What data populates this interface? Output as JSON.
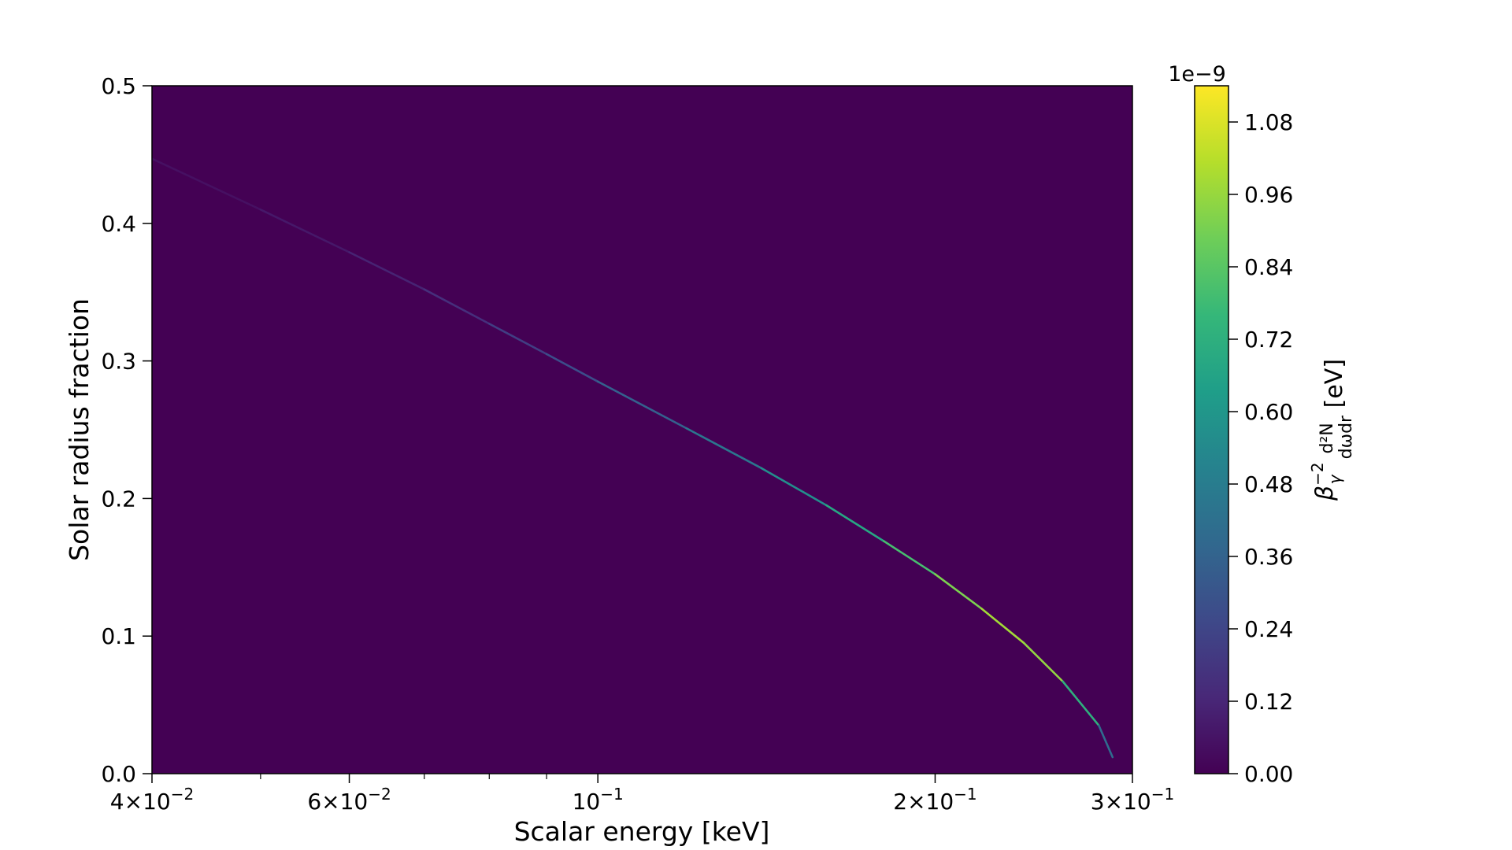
{
  "chart_data": {
    "type": "heatmap",
    "title": "",
    "xlabel": "Scalar energy [keV]",
    "ylabel": "Solar radius fraction",
    "x_scale": "log",
    "xlim": [
      0.04,
      0.3
    ],
    "ylim": [
      0.0,
      0.5
    ],
    "x_ticks": [
      {
        "value": 0.04,
        "label_base": "4×10",
        "label_exp": "−2"
      },
      {
        "value": 0.06,
        "label_base": "6×10",
        "label_exp": "−2"
      },
      {
        "value": 0.1,
        "label_base": "10",
        "label_exp": "−1"
      },
      {
        "value": 0.2,
        "label_base": "2×10",
        "label_exp": "−1"
      },
      {
        "value": 0.3,
        "label_base": "3×10",
        "label_exp": "−1"
      }
    ],
    "x_minor_ticks": [
      0.05,
      0.07,
      0.08,
      0.09
    ],
    "y_ticks": [
      {
        "value": 0.0,
        "label": "0.0"
      },
      {
        "value": 0.1,
        "label": "0.1"
      },
      {
        "value": 0.2,
        "label": "0.2"
      },
      {
        "value": 0.3,
        "label": "0.3"
      },
      {
        "value": 0.4,
        "label": "0.4"
      },
      {
        "value": 0.5,
        "label": "0.5"
      }
    ],
    "background_value": 0.0,
    "colormap": "viridis",
    "colormap_colors": [
      "#440154",
      "#482878",
      "#3e4989",
      "#31688e",
      "#26828e",
      "#1f9e89",
      "#35b779",
      "#6ece58",
      "#b5de2b",
      "#fde725"
    ],
    "colorbar": {
      "label": "βγ⁻² d²N/dωdr [eV]",
      "multiplier": "1e−9",
      "vmin": 0.0,
      "vmax": 1.14,
      "ticks": [
        {
          "value": 0.0,
          "label": "0.00"
        },
        {
          "value": 0.12,
          "label": "0.12"
        },
        {
          "value": 0.24,
          "label": "0.24"
        },
        {
          "value": 0.36,
          "label": "0.36"
        },
        {
          "value": 0.48,
          "label": "0.48"
        },
        {
          "value": 0.6,
          "label": "0.60"
        },
        {
          "value": 0.72,
          "label": "0.72"
        },
        {
          "value": 0.84,
          "label": "0.84"
        },
        {
          "value": 0.96,
          "label": "0.96"
        },
        {
          "value": 1.08,
          "label": "1.08"
        }
      ]
    },
    "ridge": {
      "points": [
        {
          "x": 0.04,
          "y": 0.447,
          "v": 0.04
        },
        {
          "x": 0.05,
          "y": 0.41,
          "v": 0.06
        },
        {
          "x": 0.06,
          "y": 0.379,
          "v": 0.09
        },
        {
          "x": 0.07,
          "y": 0.352,
          "v": 0.13
        },
        {
          "x": 0.08,
          "y": 0.327,
          "v": 0.18
        },
        {
          "x": 0.09,
          "y": 0.305,
          "v": 0.24
        },
        {
          "x": 0.1,
          "y": 0.285,
          "v": 0.3
        },
        {
          "x": 0.12,
          "y": 0.251,
          "v": 0.4
        },
        {
          "x": 0.14,
          "y": 0.222,
          "v": 0.5
        },
        {
          "x": 0.16,
          "y": 0.195,
          "v": 0.62
        },
        {
          "x": 0.18,
          "y": 0.169,
          "v": 0.74
        },
        {
          "x": 0.2,
          "y": 0.145,
          "v": 0.86
        },
        {
          "x": 0.22,
          "y": 0.12,
          "v": 0.96
        },
        {
          "x": 0.24,
          "y": 0.095,
          "v": 1.0
        },
        {
          "x": 0.26,
          "y": 0.067,
          "v": 0.9
        },
        {
          "x": 0.28,
          "y": 0.035,
          "v": 0.55
        },
        {
          "x": 0.288,
          "y": 0.012,
          "v": 0.25
        }
      ]
    }
  }
}
